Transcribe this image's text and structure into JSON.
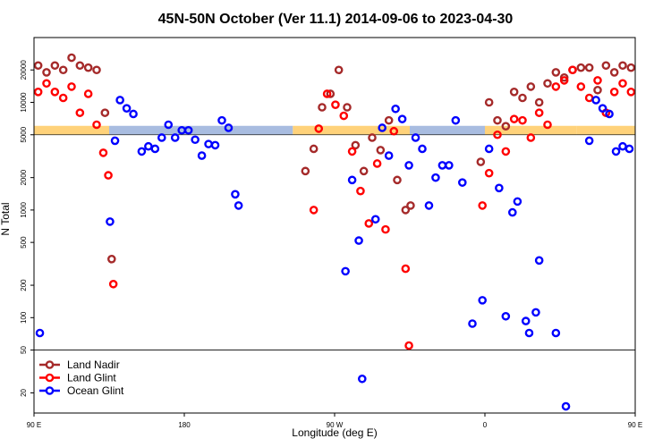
{
  "chart_data": {
    "type": "scatter",
    "title": "45N-50N October (Ver 11.1)   2014-09-06 to 2023-04-30",
    "xlabel": "Longitude (deg E)",
    "ylabel": "N Total",
    "x_scale": "linear",
    "y_scale": "log",
    "xlim": [
      90,
      450
    ],
    "ylim": [
      13,
      40000
    ],
    "x_ticks": [
      {
        "value": 90,
        "label": "90 E"
      },
      {
        "value": 180,
        "label": "180"
      },
      {
        "value": 270,
        "label": "90 W"
      },
      {
        "value": 360,
        "label": "0"
      },
      {
        "value": 450,
        "label": "90 E"
      },
      {
        "value": 540,
        "label": "180"
      }
    ],
    "y_ticks": [
      {
        "value": 20,
        "label": "20"
      },
      {
        "value": 50,
        "label": "50"
      },
      {
        "value": 100,
        "label": "100"
      },
      {
        "value": 200,
        "label": "200"
      },
      {
        "value": 500,
        "label": "500"
      },
      {
        "value": 1000,
        "label": "1000"
      },
      {
        "value": 2000,
        "label": "2000"
      },
      {
        "value": 5000,
        "label": "5000"
      },
      {
        "value": 10000,
        "label": "10000"
      },
      {
        "value": 20000,
        "label": "20000"
      }
    ],
    "reference_lines": [
      50,
      5000
    ],
    "legend_position": "bottom-left",
    "series": [
      {
        "name": "Land Nadir",
        "color": "#a52a2a",
        "points": [
          [
            92.5,
            22000
          ],
          [
            97.5,
            19000
          ],
          [
            102.5,
            22000
          ],
          [
            107.5,
            20000
          ],
          [
            112.5,
            26000
          ],
          [
            117.5,
            22000
          ],
          [
            122.5,
            21000
          ],
          [
            127.5,
            20000
          ],
          [
            132.5,
            8000
          ],
          [
            136.5,
            350
          ],
          [
            252.5,
            2300
          ],
          [
            257.5,
            3700
          ],
          [
            262.5,
            9000
          ],
          [
            267.5,
            12000
          ],
          [
            272.5,
            20000
          ],
          [
            277.5,
            9000
          ],
          [
            282.5,
            4000
          ],
          [
            287.5,
            2300
          ],
          [
            292.5,
            4700
          ],
          [
            297.5,
            3600
          ],
          [
            302.5,
            6800
          ],
          [
            307.5,
            1900
          ],
          [
            312.5,
            1000
          ],
          [
            315.5,
            1100
          ],
          [
            357.5,
            2800
          ],
          [
            362.5,
            10000
          ],
          [
            367.5,
            6800
          ],
          [
            372.5,
            6000
          ],
          [
            377.5,
            12500
          ],
          [
            382.5,
            11000
          ],
          [
            387.5,
            14000
          ],
          [
            392.5,
            10000
          ],
          [
            397.5,
            15000
          ],
          [
            402.5,
            19000
          ],
          [
            407.5,
            17000
          ],
          [
            412.5,
            20000
          ],
          [
            417.5,
            21000
          ],
          [
            422.5,
            21000
          ],
          [
            427.5,
            13000
          ],
          [
            432.5,
            22000
          ],
          [
            437.5,
            19000
          ],
          [
            442.5,
            22000
          ],
          [
            447.5,
            21000
          ],
          [
            452.5,
            26000
          ],
          [
            457.5,
            22000
          ],
          [
            462.5,
            21000
          ],
          [
            467.5,
            20000
          ],
          [
            472.5,
            8000
          ],
          [
            476.5,
            350
          ]
        ]
      },
      {
        "name": "Land Glint",
        "color": "#ff0000",
        "points": [
          [
            92.5,
            12500
          ],
          [
            97.5,
            15000
          ],
          [
            102.5,
            12500
          ],
          [
            107.5,
            11000
          ],
          [
            112.5,
            14000
          ],
          [
            117.5,
            8000
          ],
          [
            122.5,
            12000
          ],
          [
            127.5,
            6200
          ],
          [
            131.5,
            3400
          ],
          [
            134.5,
            2100
          ],
          [
            137.5,
            205
          ],
          [
            257.5,
            1000
          ],
          [
            260.5,
            5700
          ],
          [
            265.5,
            12000
          ],
          [
            270.5,
            9500
          ],
          [
            275.5,
            7500
          ],
          [
            280.5,
            3500
          ],
          [
            285.5,
            1500
          ],
          [
            290.5,
            750
          ],
          [
            295.5,
            2700
          ],
          [
            300.5,
            660
          ],
          [
            305.5,
            5400
          ],
          [
            312.5,
            285
          ],
          [
            314.5,
            55
          ],
          [
            358.5,
            1100
          ],
          [
            362.5,
            2200
          ],
          [
            367.5,
            5000
          ],
          [
            372.5,
            3500
          ],
          [
            377.5,
            7000
          ],
          [
            382.5,
            6800
          ],
          [
            387.5,
            4700
          ],
          [
            392.5,
            8000
          ],
          [
            397.5,
            6200
          ],
          [
            402.5,
            14000
          ],
          [
            407.5,
            16000
          ],
          [
            412.5,
            20000
          ],
          [
            417.5,
            14000
          ],
          [
            422.5,
            11000
          ],
          [
            427.5,
            16000
          ],
          [
            432.5,
            8000
          ],
          [
            437.5,
            12500
          ],
          [
            442.5,
            15000
          ],
          [
            447.5,
            12500
          ],
          [
            452.5,
            11000
          ],
          [
            457.5,
            14000
          ],
          [
            462.5,
            8000
          ],
          [
            467.5,
            12000
          ],
          [
            472.5,
            6200
          ],
          [
            476.5,
            3400
          ],
          [
            479.5,
            2100
          ],
          [
            481.5,
            205
          ]
        ]
      },
      {
        "name": "Ocean Glint",
        "color": "#0000ff",
        "points": [
          [
            93.5,
            72
          ],
          [
            135.5,
            780
          ],
          [
            138.5,
            4400
          ],
          [
            141.5,
            10500
          ],
          [
            145.5,
            8800
          ],
          [
            149.5,
            7800
          ],
          [
            154.5,
            3500
          ],
          [
            158.5,
            3900
          ],
          [
            162.5,
            3700
          ],
          [
            166.5,
            4700
          ],
          [
            170.5,
            6200
          ],
          [
            174.5,
            4700
          ],
          [
            178.5,
            5500
          ],
          [
            182.5,
            5500
          ],
          [
            186.5,
            4500
          ],
          [
            190.5,
            3200
          ],
          [
            194.5,
            4100
          ],
          [
            198.5,
            4000
          ],
          [
            202.5,
            6800
          ],
          [
            206.5,
            5800
          ],
          [
            210.5,
            1400
          ],
          [
            212.5,
            1100
          ],
          [
            276.5,
            270
          ],
          [
            280.5,
            1900
          ],
          [
            284.5,
            520
          ],
          [
            286.5,
            27
          ],
          [
            294.5,
            820
          ],
          [
            298.5,
            5800
          ],
          [
            302.5,
            3200
          ],
          [
            306.5,
            8700
          ],
          [
            310.5,
            7000
          ],
          [
            314.5,
            2600
          ],
          [
            318.5,
            4700
          ],
          [
            322.5,
            3700
          ],
          [
            326.5,
            1100
          ],
          [
            330.5,
            2000
          ],
          [
            334.5,
            2600
          ],
          [
            338.5,
            2600
          ],
          [
            342.5,
            6800
          ],
          [
            346.5,
            1800
          ],
          [
            352.5,
            88
          ],
          [
            358.5,
            145
          ],
          [
            362.5,
            3700
          ],
          [
            368.5,
            1600
          ],
          [
            372.5,
            103
          ],
          [
            376.5,
            950
          ],
          [
            379.5,
            1200
          ],
          [
            384.5,
            93
          ],
          [
            386.5,
            72
          ],
          [
            390.5,
            112
          ],
          [
            392.5,
            340
          ],
          [
            402.5,
            72
          ],
          [
            408.5,
            15
          ],
          [
            422.5,
            4400
          ],
          [
            426.5,
            10500
          ],
          [
            430.5,
            8800
          ],
          [
            434.5,
            7800
          ],
          [
            438.5,
            3500
          ],
          [
            442.5,
            3900
          ],
          [
            446.5,
            3700
          ],
          [
            450.5,
            4700
          ]
        ]
      }
    ],
    "band": {
      "y": 5500,
      "segments": [
        {
          "x0": 90,
          "x1": 135,
          "color": "#ffd27a"
        },
        {
          "x0": 135,
          "x1": 245,
          "color": "#a8bce0"
        },
        {
          "x0": 245,
          "x1": 315,
          "color": "#ffd27a"
        },
        {
          "x0": 315,
          "x1": 360,
          "color": "#a8bce0"
        },
        {
          "x0": 360,
          "x1": 415,
          "color": "#ffd27a"
        },
        {
          "x0": 415,
          "x1": 470,
          "color": "#ffd27a"
        },
        {
          "x0": 470,
          "x1": 490,
          "color": "#a8bce0"
        }
      ]
    }
  }
}
